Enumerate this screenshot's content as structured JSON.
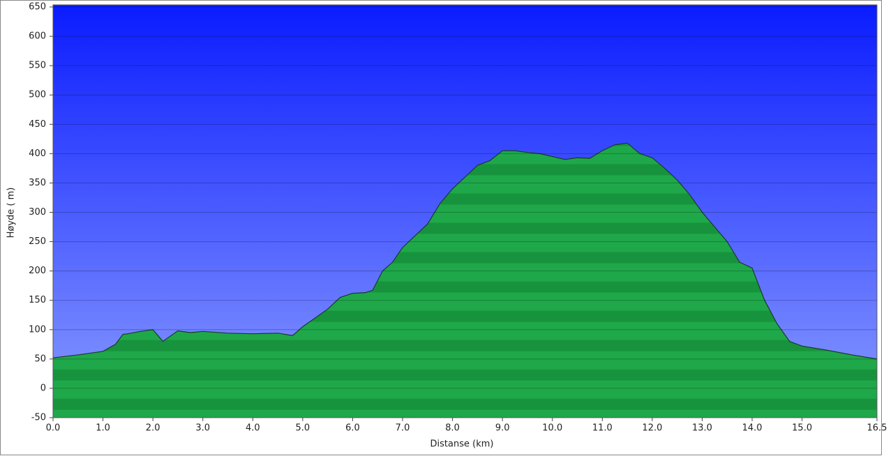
{
  "chart_data": {
    "type": "area",
    "x_label": "Distanse   (km)",
    "y_label": "Høyde ( m)",
    "x": [
      0,
      0.5,
      1.0,
      1.25,
      1.4,
      1.5,
      1.75,
      2.0,
      2.1,
      2.2,
      2.5,
      2.75,
      3.0,
      3.5,
      4.0,
      4.5,
      4.8,
      5.0,
      5.25,
      5.5,
      5.75,
      6.0,
      6.25,
      6.4,
      6.6,
      6.8,
      7.0,
      7.25,
      7.5,
      7.75,
      8.0,
      8.25,
      8.5,
      8.75,
      9.0,
      9.25,
      9.5,
      9.75,
      10.0,
      10.25,
      10.5,
      10.75,
      11.0,
      11.25,
      11.5,
      11.75,
      12.0,
      12.25,
      12.5,
      12.75,
      13.0,
      13.25,
      13.5,
      13.75,
      14.0,
      14.25,
      14.5,
      14.75,
      15.0,
      15.5,
      16.0,
      16.5
    ],
    "values": [
      52,
      57,
      63,
      75,
      92,
      93,
      97,
      100,
      90,
      80,
      98,
      95,
      97,
      94,
      93,
      94,
      90,
      105,
      120,
      135,
      155,
      162,
      163,
      167,
      200,
      215,
      240,
      260,
      280,
      315,
      340,
      360,
      380,
      388,
      405,
      405,
      402,
      400,
      395,
      390,
      393,
      392,
      405,
      415,
      418,
      400,
      393,
      375,
      355,
      330,
      300,
      275,
      250,
      215,
      205,
      150,
      110,
      80,
      72,
      65,
      57,
      50
    ],
    "color": "#1fa84a",
    "xlim": [
      0,
      16.5
    ],
    "xticks": [
      {
        "value": 0,
        "label": "0.0"
      },
      {
        "value": 1,
        "label": "1.0"
      },
      {
        "value": 2,
        "label": "2.0"
      },
      {
        "value": 3,
        "label": "3.0"
      },
      {
        "value": 4,
        "label": "4.0"
      },
      {
        "value": 5,
        "label": "5.0"
      },
      {
        "value": 6,
        "label": "6.0"
      },
      {
        "value": 7,
        "label": "7.0"
      },
      {
        "value": 8,
        "label": "8.0"
      },
      {
        "value": 9,
        "label": "9.0"
      },
      {
        "value": 10,
        "label": "10.0"
      },
      {
        "value": 11,
        "label": "11.0"
      },
      {
        "value": 12,
        "label": "12.0"
      },
      {
        "value": 13,
        "label": "13.0"
      },
      {
        "value": 14,
        "label": "14.0"
      },
      {
        "value": 15,
        "label": "15.0"
      },
      16.5
    ],
    "ylim": [
      -50,
      650
    ],
    "yticks": [
      -50,
      0,
      50,
      100,
      150,
      200,
      250,
      300,
      350,
      400,
      450,
      500,
      550,
      600,
      650
    ],
    "grid": true
  }
}
